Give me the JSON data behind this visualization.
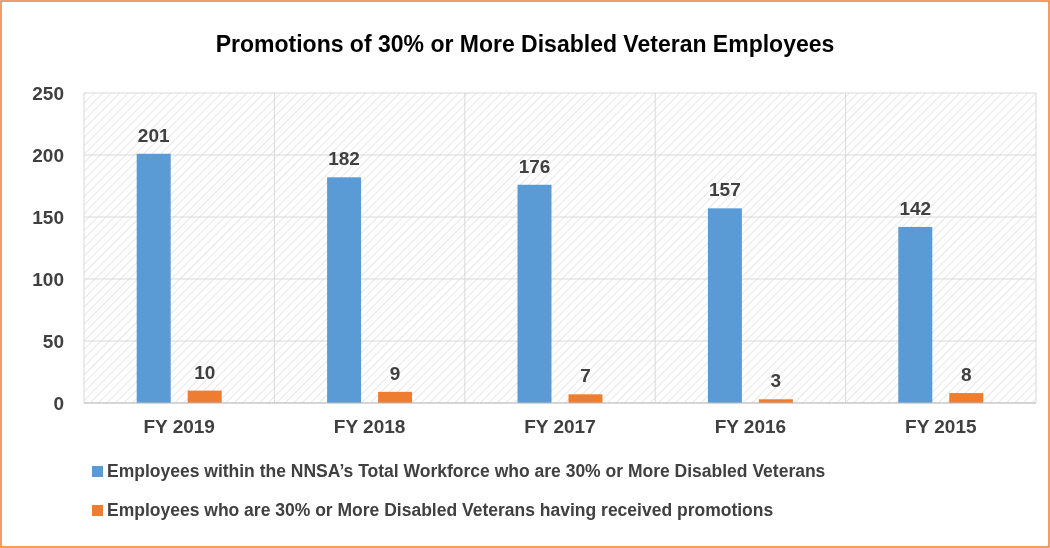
{
  "chart_data": {
    "type": "bar",
    "title": "Promotions of 30% or More Disabled Veteran Employees",
    "categories": [
      "FY 2019",
      "FY 2018",
      "FY 2017",
      "FY 2016",
      "FY 2015"
    ],
    "series": [
      {
        "name": "Employees within the NNSA’s Total Workforce who are 30% or More Disabled Veterans",
        "color": "#5b9bd5",
        "values": [
          201,
          182,
          176,
          157,
          142
        ]
      },
      {
        "name": "Employees who are 30% or More Disabled Veterans having received promotions",
        "color": "#ed7d31",
        "values": [
          10,
          9,
          7,
          3,
          8
        ]
      }
    ],
    "ylim": [
      0,
      250
    ],
    "yticks": [
      0,
      50,
      100,
      150,
      200,
      250
    ],
    "grid": true,
    "legend": "bottom",
    "data_labels": true
  }
}
